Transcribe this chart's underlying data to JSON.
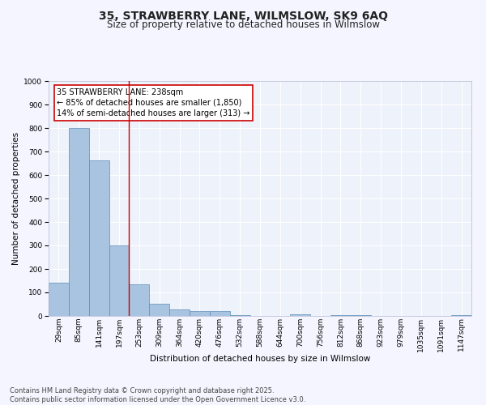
{
  "title": "35, STRAWBERRY LANE, WILMSLOW, SK9 6AQ",
  "subtitle": "Size of property relative to detached houses in Wilmslow",
  "xlabel": "Distribution of detached houses by size in Wilmslow",
  "ylabel": "Number of detached properties",
  "bin_labels": [
    "29sqm",
    "85sqm",
    "141sqm",
    "197sqm",
    "253sqm",
    "309sqm",
    "364sqm",
    "420sqm",
    "476sqm",
    "532sqm",
    "588sqm",
    "644sqm",
    "700sqm",
    "756sqm",
    "812sqm",
    "868sqm",
    "923sqm",
    "979sqm",
    "1035sqm",
    "1091sqm",
    "1147sqm"
  ],
  "bar_heights": [
    143,
    800,
    663,
    300,
    135,
    52,
    28,
    20,
    20,
    5,
    0,
    0,
    8,
    0,
    3,
    2,
    0,
    0,
    0,
    0,
    3
  ],
  "bar_color": "#a8c4e0",
  "bar_edge_color": "#5b8db8",
  "vline_x": 4,
  "vline_color": "#cc0000",
  "annotation_line1": "35 STRAWBERRY LANE: 238sqm",
  "annotation_line2": "← 85% of detached houses are smaller (1,850)",
  "annotation_line3": "14% of semi-detached houses are larger (313) →",
  "annotation_box_color": "#cc0000",
  "ylim": [
    0,
    1000
  ],
  "yticks": [
    0,
    100,
    200,
    300,
    400,
    500,
    600,
    700,
    800,
    900,
    1000
  ],
  "bg_color": "#eef2fb",
  "grid_color": "#ffffff",
  "footer_text": "Contains HM Land Registry data © Crown copyright and database right 2025.\nContains public sector information licensed under the Open Government Licence v3.0.",
  "title_fontsize": 10,
  "subtitle_fontsize": 8.5,
  "axis_label_fontsize": 7.5,
  "tick_fontsize": 6.5,
  "annotation_fontsize": 7,
  "footer_fontsize": 6
}
